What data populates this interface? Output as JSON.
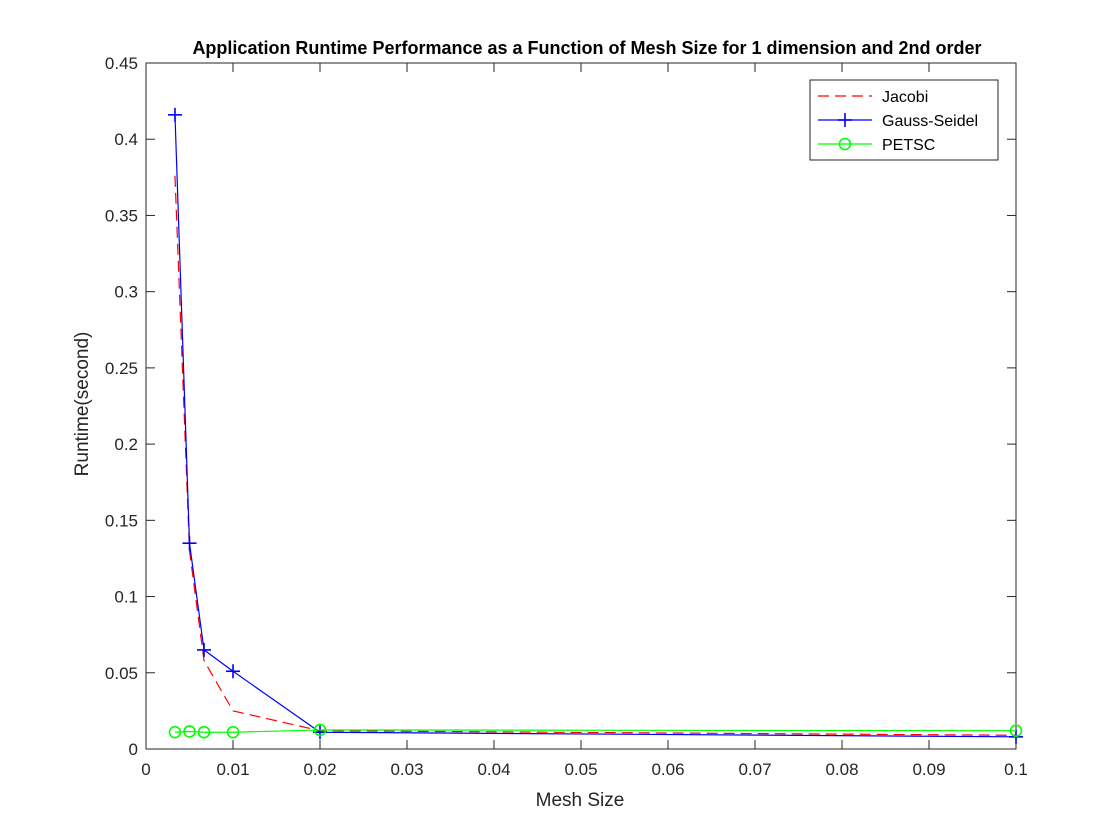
{
  "chart_data": {
    "type": "line",
    "title": "Application Runtime Performance as a Function of Mesh Size for 1 dimension and 2nd order",
    "xlabel": "Mesh Size",
    "ylabel": "Runtime(second)",
    "xlim": [
      0,
      0.1
    ],
    "ylim": [
      0,
      0.45
    ],
    "xticks": [
      "0",
      "0.01",
      "0.02",
      "0.03",
      "0.04",
      "0.05",
      "0.06",
      "0.07",
      "0.08",
      "0.09",
      "0.1"
    ],
    "yticks": [
      "0",
      "0.05",
      "0.1",
      "0.15",
      "0.2",
      "0.25",
      "0.3",
      "0.35",
      "0.4",
      "0.45"
    ],
    "legend_position": "top-right",
    "grid": false,
    "series": [
      {
        "name": "Jacobi",
        "color": "#ff0000",
        "line_style": "dashed",
        "marker": "none",
        "x": [
          0.00333,
          0.005,
          0.00667,
          0.01,
          0.02,
          0.1
        ],
        "y": [
          0.376,
          0.13,
          0.058,
          0.025,
          0.012,
          0.009
        ]
      },
      {
        "name": "Gauss-Seidel",
        "color": "#0000ff",
        "line_style": "solid",
        "marker": "plus",
        "x": [
          0.00333,
          0.005,
          0.00667,
          0.01,
          0.02,
          0.1
        ],
        "y": [
          0.416,
          0.135,
          0.065,
          0.051,
          0.011,
          0.008
        ]
      },
      {
        "name": "PETSC",
        "color": "#00ff00",
        "line_style": "solid",
        "marker": "circle",
        "x": [
          0.00333,
          0.005,
          0.00667,
          0.01,
          0.02,
          0.1
        ],
        "y": [
          0.011,
          0.0115,
          0.011,
          0.011,
          0.0125,
          0.012
        ]
      }
    ]
  }
}
